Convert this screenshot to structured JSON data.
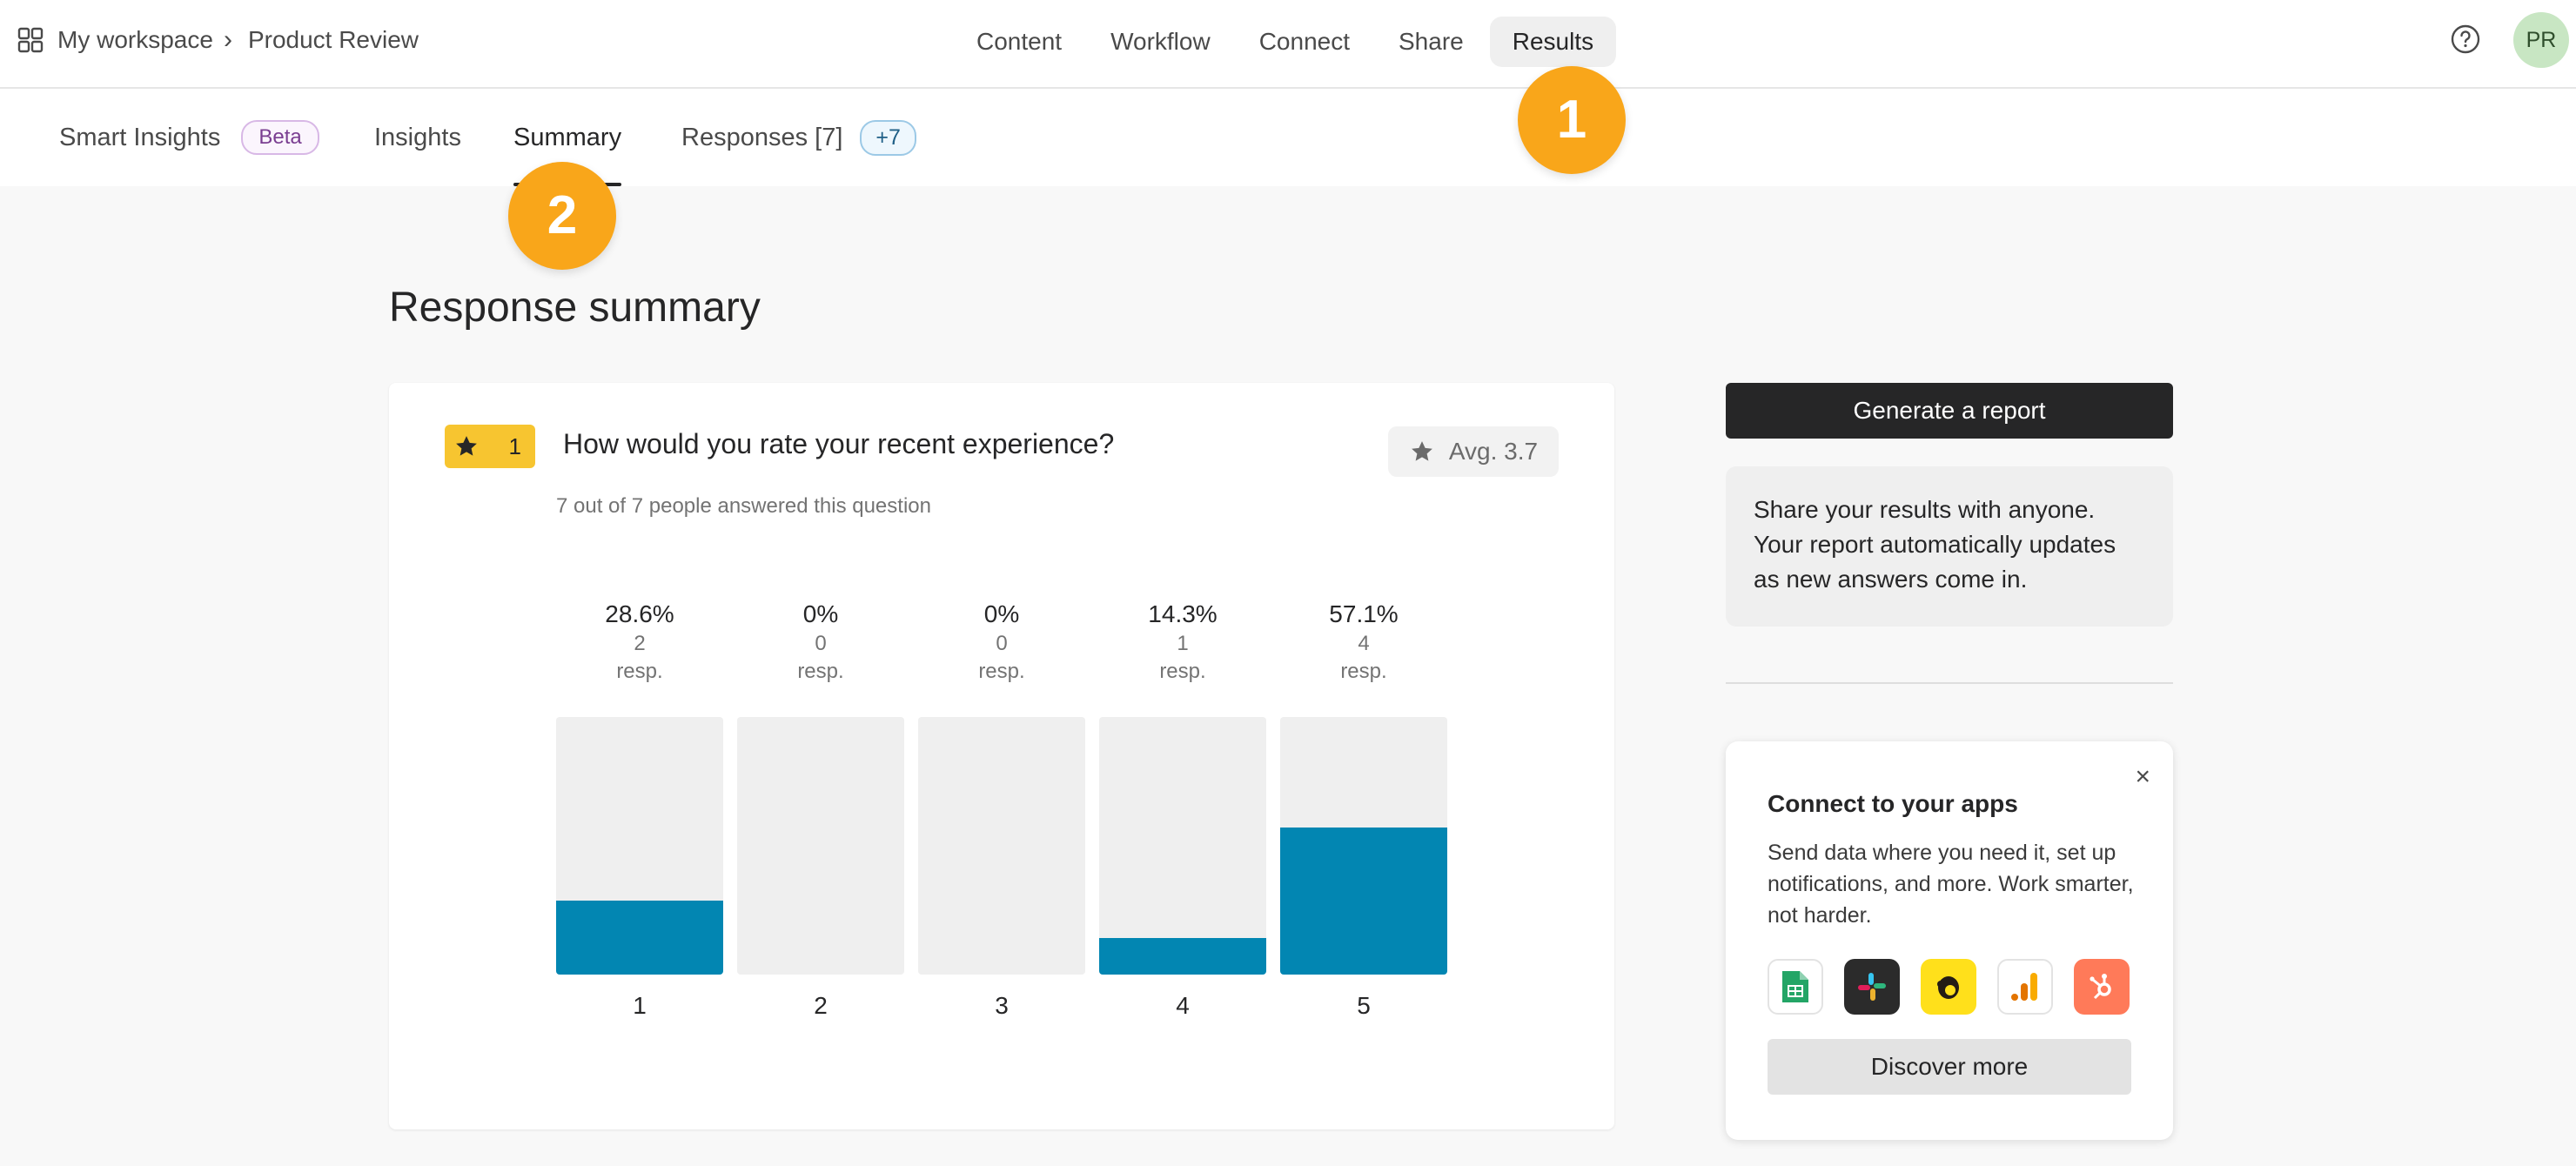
{
  "breadcrumb": {
    "workspace": "My workspace",
    "separator": "›",
    "form": "Product Review"
  },
  "nav": {
    "items": [
      "Content",
      "Workflow",
      "Connect",
      "Share",
      "Results"
    ],
    "active": "Results"
  },
  "user": {
    "initials": "PR"
  },
  "subtabs": {
    "smart_insights": "Smart Insights",
    "beta_badge": "Beta",
    "insights": "Insights",
    "summary": "Summary",
    "responses": "Responses [7]",
    "responses_badge": "+7",
    "active": "Summary"
  },
  "step_markers": [
    "1",
    "2"
  ],
  "page_title": "Response summary",
  "question": {
    "number": "1",
    "title": "How would you rate your recent experience?",
    "avg": "Avg. 3.7",
    "answered": "7 out of 7 people answered this question"
  },
  "chart_data": {
    "type": "bar",
    "categories": [
      "1",
      "2",
      "3",
      "4",
      "5"
    ],
    "percent_labels": [
      "28.6%",
      "0%",
      "0%",
      "14.3%",
      "57.1%"
    ],
    "counts": [
      "2",
      "0",
      "0",
      "1",
      "4"
    ],
    "count_unit": "resp.",
    "values": [
      28.6,
      0,
      0,
      14.3,
      57.1
    ],
    "ylim": [
      0,
      100
    ],
    "bar_color": "#0286b2",
    "track_color": "#efefef"
  },
  "sidebar": {
    "generate_report": "Generate a report",
    "share_text": "Share your results with anyone. Your report automatically updates as new answers come in.",
    "connect": {
      "close": "×",
      "title": "Connect to your apps",
      "description": "Send data where you need it, set up notifications, and more. Work smarter, not harder.",
      "apps": [
        "google-sheets-icon",
        "slack-icon",
        "mailchimp-icon",
        "google-analytics-icon",
        "hubspot-icon"
      ],
      "discover": "Discover more"
    }
  },
  "colors": {
    "accent": "#0286b2",
    "marker": "#f9a61a",
    "rating_badge": "#f7c530"
  }
}
